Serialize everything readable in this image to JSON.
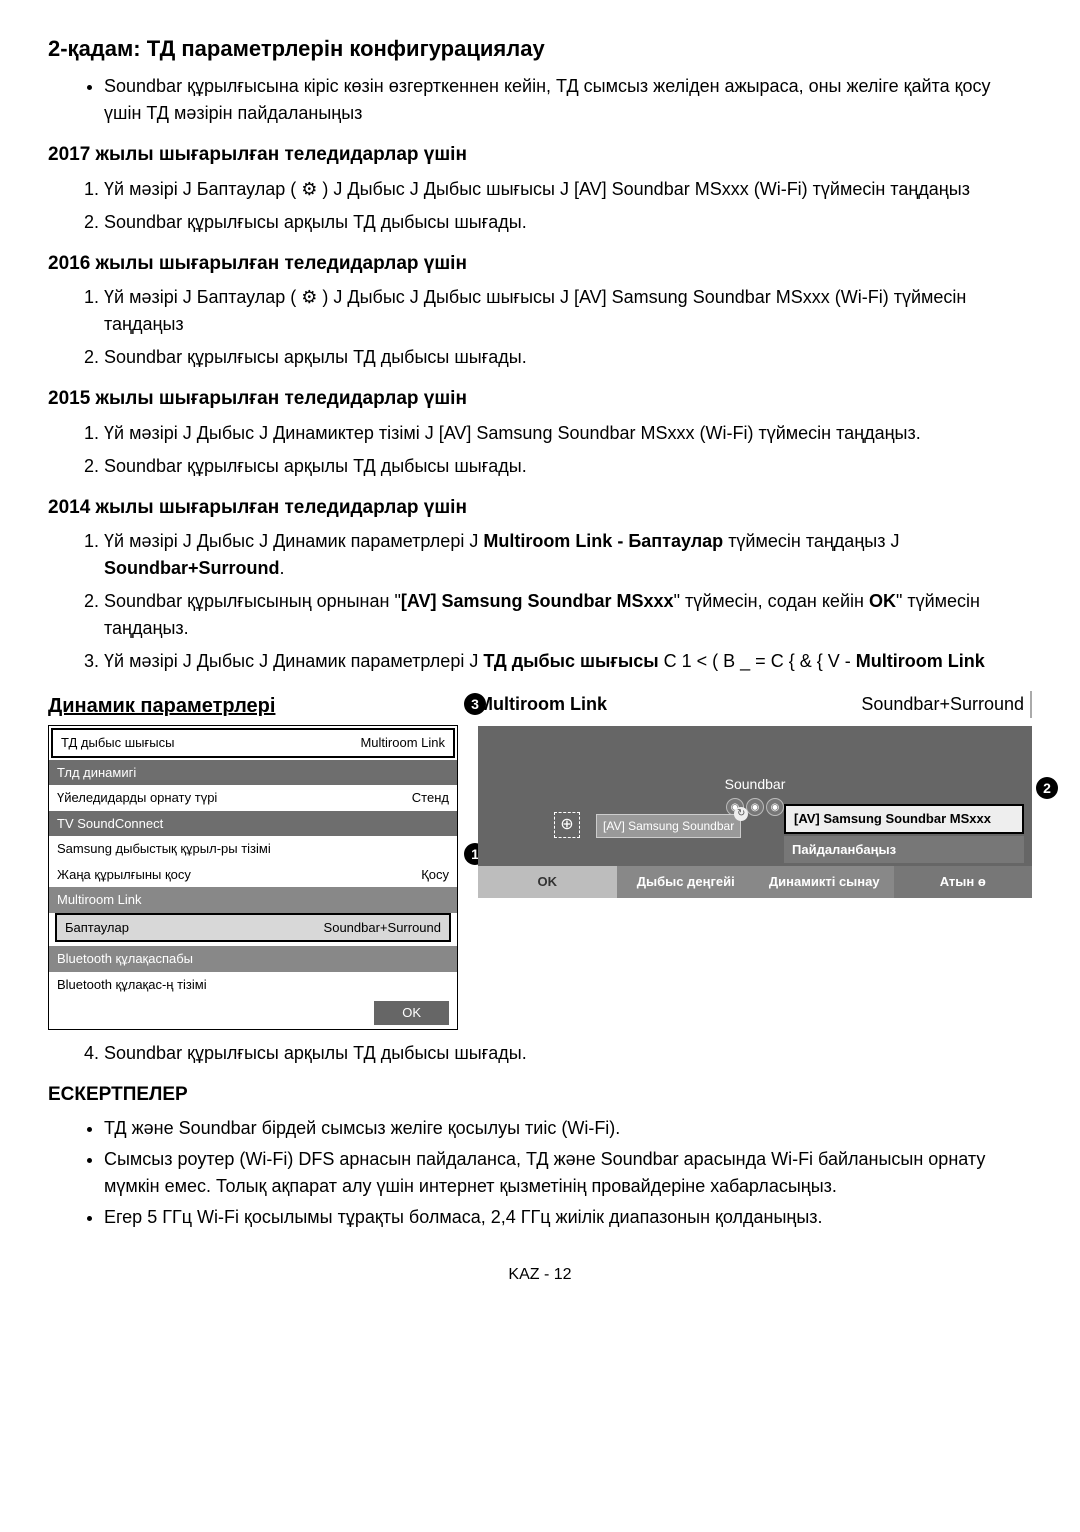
{
  "step2": {
    "title": "2-қадам: ТД параметрлерін конфигурациялау",
    "intro": "Soundbar құрылғысына кіріс көзін өзгерткеннен кейін, ТД сымсыз желіден ажыраса, оны желіге қайта қосу үшін ТД мәзірін пайдаланыңыз"
  },
  "y2017": {
    "title": "2017 жылы шығарылған теледидарлар үшін",
    "li1": "Үй мәзірі  Ј Баптаулар ( ⚙ )  Ј Дыбыс  Ј Дыбыс шығысы  Ј [AV] Soundbar MSxxx (Wi-Fi) түймесін таңдаңыз",
    "li2": "Soundbar құрылғысы арқылы ТД дыбысы шығады."
  },
  "y2016": {
    "title": "2016 жылы шығарылған теледидарлар үшін",
    "li1": "Үй мәзірі  Ј Баптаулар ( ⚙ )  Ј Дыбыс  Ј Дыбыс шығысы  Ј [AV] Samsung Soundbar MSxxx (Wi-Fi) түймесін таңдаңыз",
    "li2": "Soundbar құрылғысы арқылы ТД дыбысы шығады."
  },
  "y2015": {
    "title": "2015 жылы шығарылған теледидарлар үшін",
    "li1": "Үй мәзірі  Ј Дыбыс  Ј Динамиктер тізімі  Ј [AV] Samsung Soundbar MSxxx (Wi-Fi) түймесін таңдаңыз.",
    "li2": "Soundbar құрылғысы арқылы ТД дыбысы шығады."
  },
  "y2014": {
    "title": "2014 жылы шығарылған теледидарлар үшін",
    "li1a": "Үй мәзірі  Ј Дыбыс  Ј Динамик параметрлері  Ј ",
    "li1b": "Multiroom Link - Баптаулар",
    "li1c": " түймесін таңдаңыз  Ј ",
    "li1d": "Soundbar+Surround",
    "li1e": ".",
    "li2a": "Soundbar құрылғысының орнынан \"",
    "li2b": "[AV] Samsung Soundbar MSxxx",
    "li2c": "\" түймесін, содан кейін ",
    "li2d": "OK",
    "li2e": "\" түймесін таңдаңыз.",
    "li3a": "Үй мәзірі  Ј Дыбыс  Ј Динамик параметрлері  Ј ",
    "li3b": "ТД дыбыс шығысы",
    "li3c": "  C   1 < ( B _ =  C  { & { V - ",
    "li3d": "Multiroom Link",
    "li4": "Soundbar құрылғысы арқылы ТД дыбысы шығады."
  },
  "speakerPanel": {
    "title": "Динамик параметрлері",
    "rows": {
      "r1l": "ТД дыбыс шығысы",
      "r1r": "Multiroom Link",
      "r2": "Тлд динамигі",
      "r3l": "Үйеледидарды орнату түрі",
      "r3r": "Стенд",
      "r4": "TV SoundConnect",
      "r5": "Samsung дыбыстық құрыл-ры тізімі",
      "r6l": "Жаңа құрылғыны қосу",
      "r6r": "Қосу",
      "r7": "Multiroom Link",
      "r8l": "Баптаулар",
      "r8r": "Soundbar+Surround",
      "r9": "Bluetooth құлақаспабы",
      "r10": "Bluetooth құлақас-ң тізімі",
      "ok": "OK"
    }
  },
  "mlPanel": {
    "left": "Multiroom Link",
    "right": "Soundbar+Surround",
    "soundbar": "Soundbar",
    "device": "[AV] Samsung Soundbar",
    "selA": "[AV] Samsung Soundbar MSxxx",
    "selB": "Пайдаланбаңыз",
    "foot": {
      "a": "OK",
      "b": "Дыбыс деңгейі",
      "c": "Динамикті сынау",
      "d": "Атын ө"
    }
  },
  "badges": {
    "b1": "1",
    "b2": "2",
    "b3": "3"
  },
  "notes": {
    "title": "ЕСКЕРТПЕЛЕР",
    "n1": "ТД және Soundbar бірдей сымсыз желіге қосылуы тиіс (Wi-Fi).",
    "n2": "Сымсыз роутер (Wi-Fi) DFS арнасын пайдаланса, ТД және Soundbar арасында Wi-Fi байланысын орнату мүмкін емес. Толық ақпарат алу үшін интернет қызметінің провайдеріне хабарласыңыз.",
    "n3": "Егер 5 ГГц Wi-Fi қосылымы тұрақты болмаса, 2,4 ГГц жиілік диапазонын қолданыңыз."
  },
  "pageFooter": "KAZ - 12"
}
